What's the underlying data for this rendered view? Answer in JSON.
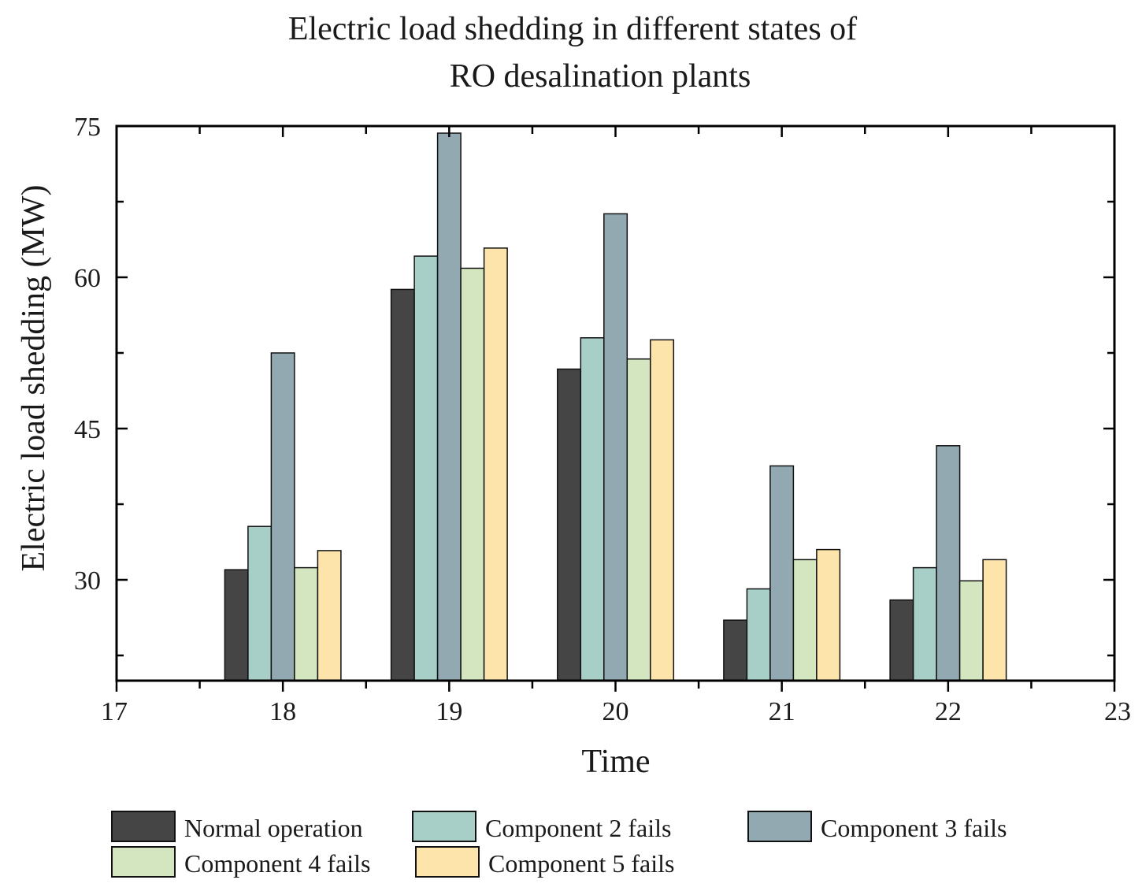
{
  "chart_data": {
    "type": "bar",
    "title": [
      "Electric load shedding in different states of",
      "RO desalination plants"
    ],
    "xlabel": "Time",
    "ylabel": "Electric load shedding (MW)",
    "xlim": [
      17,
      23
    ],
    "ylim": [
      20,
      75
    ],
    "x_ticks": [
      "17",
      "18",
      "19",
      "20",
      "21",
      "22",
      "23"
    ],
    "y_ticks": [
      "30",
      "45",
      "60",
      "75"
    ],
    "categories": [
      18,
      19,
      20,
      21,
      22
    ],
    "series": [
      {
        "name": "Normal operation",
        "color": "#454545",
        "values": [
          31.0,
          58.8,
          50.9,
          26.0,
          28.0
        ]
      },
      {
        "name": "Component 2 fails",
        "color": "#a7cfc8",
        "values": [
          35.3,
          62.1,
          54.0,
          29.1,
          31.2
        ]
      },
      {
        "name": "Component 3 fails",
        "color": "#93a9b1",
        "values": [
          52.5,
          74.3,
          66.3,
          41.3,
          43.3
        ]
      },
      {
        "name": "Component 4 fails",
        "color": "#d3e6c0",
        "values": [
          31.2,
          60.9,
          51.9,
          32.0,
          29.9
        ]
      },
      {
        "name": "Component 5 fails",
        "color": "#fde4aa",
        "values": [
          32.9,
          62.9,
          53.8,
          33.0,
          32.0
        ]
      }
    ],
    "grid": false,
    "legend_position": "bottom"
  }
}
